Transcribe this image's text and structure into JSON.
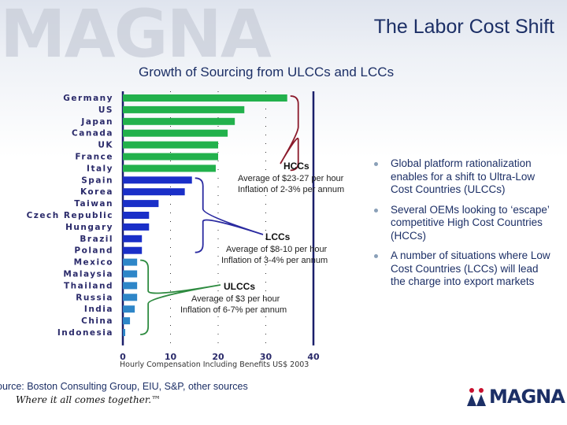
{
  "brand": {
    "watermark": "MAGNA",
    "logo_text": "MAGNA",
    "tagline": "Where it all comes together.™"
  },
  "header": {
    "title": "The Labor Cost Shift",
    "subtitle": "Growth of Sourcing from ULCCs and LCCs"
  },
  "groups": [
    {
      "name": "HCCs",
      "lines": [
        "Average of $23-27 per hour",
        "Inflation of 2-3% per annum"
      ]
    },
    {
      "name": "LCCs",
      "lines": [
        "Average of $8-10 per hour",
        "Inflation of 3-4% per annum"
      ]
    },
    {
      "name": "ULCCs",
      "lines": [
        "Average of $3 per hour",
        "Inflation of 6-7% per annum"
      ]
    }
  ],
  "bullets": [
    "Global platform rationalization enables for a shift to Ultra-Low Cost Countries (ULCCs)",
    "Several OEMs looking to ‘escape’ competitive High Cost Countries (HCCs)",
    "A number of situations where Low Cost Countries (LCCs) will lead the charge into export markets"
  ],
  "footer": {
    "source": "ource: Boston Consulting Group, EIU, S&P, other sources"
  },
  "colors": {
    "hcc": "#22b14c",
    "lcc": "#1a2fc8",
    "ulcc": "#2e86c8",
    "brace_hcc": "#8b1a2b",
    "brace_lcc": "#2a2aa0",
    "brace_ulcc": "#2e8b40",
    "accent": "#1c2f66"
  },
  "chart_data": {
    "type": "bar",
    "orientation": "horizontal",
    "title": "",
    "xlabel": "Hourly Compensation Including Benefits US$ 2003",
    "ylabel": "",
    "xlim": [
      0,
      40
    ],
    "xticks": [
      "0",
      "10",
      "20",
      "30",
      "40"
    ],
    "grid": true,
    "categories": [
      "Germany",
      "US",
      "Japan",
      "Canada",
      "UK",
      "France",
      "Italy",
      "Spain",
      "Korea",
      "Taiwan",
      "Czech Republic",
      "Hungary",
      "Brazil",
      "Poland",
      "Mexico",
      "Malaysia",
      "Thailand",
      "Russia",
      "India",
      "China",
      "Indonesia"
    ],
    "values": [
      34.5,
      25.5,
      23.5,
      22,
      20,
      20,
      19.5,
      14.5,
      13,
      7.5,
      5.5,
      5.5,
      4,
      4,
      3,
      3,
      3,
      3,
      2.5,
      1.5,
      0.5
    ],
    "groups": [
      "HCCs",
      "HCCs",
      "HCCs",
      "HCCs",
      "HCCs",
      "HCCs",
      "HCCs",
      "LCCs",
      "LCCs",
      "LCCs",
      "LCCs",
      "LCCs",
      "LCCs",
      "LCCs",
      "ULCCs",
      "ULCCs",
      "ULCCs",
      "ULCCs",
      "ULCCs",
      "ULCCs",
      "ULCCs"
    ]
  }
}
